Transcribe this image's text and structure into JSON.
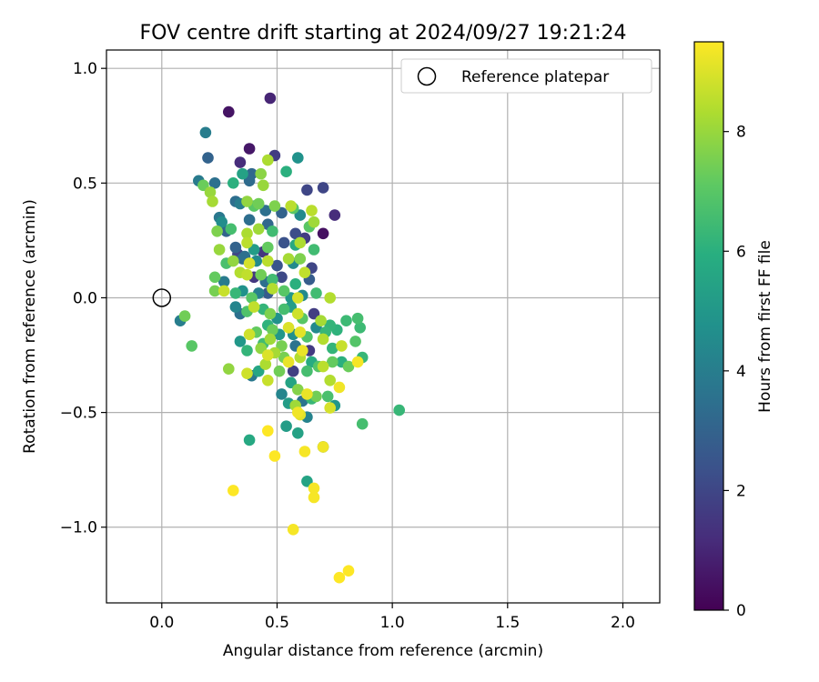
{
  "chart_data": {
    "type": "scatter",
    "title": "FOV centre drift starting at 2024/09/27 19:21:24",
    "xlabel": "Angular distance from reference (arcmin)",
    "ylabel": "Rotation from reference (arcmin)",
    "xlim": [
      -0.24,
      2.16
    ],
    "ylim": [
      -1.33,
      1.08
    ],
    "x_ticks": [
      0.0,
      0.5,
      1.0,
      1.5,
      2.0
    ],
    "x_tick_labels": [
      "0.0",
      "0.5",
      "1.0",
      "1.5",
      "2.0"
    ],
    "y_ticks": [
      -1.0,
      -0.5,
      0.0,
      0.5,
      1.0
    ],
    "y_tick_labels": [
      "−1.0",
      "−0.5",
      "0.0",
      "0.5",
      "1.0"
    ],
    "grid": true,
    "legend": {
      "position": "top-right",
      "entries": [
        {
          "label": "Reference platepar",
          "marker": "open-circle"
        }
      ]
    },
    "reference_point": {
      "x": 0.0,
      "y": 0.0
    },
    "colorbar": {
      "label": "Hours from first FF file",
      "range": [
        0,
        9.5
      ],
      "ticks": [
        0,
        2,
        4,
        6,
        8
      ],
      "tick_labels": [
        "0",
        "2",
        "4",
        "6",
        "8"
      ],
      "colormap": "viridis"
    },
    "points": [
      {
        "x": 0.29,
        "y": 0.81,
        "h": 0.5
      },
      {
        "x": 0.47,
        "y": 0.87,
        "h": 1.0
      },
      {
        "x": 0.38,
        "y": 0.65,
        "h": 0.6
      },
      {
        "x": 0.49,
        "y": 0.62,
        "h": 1.7
      },
      {
        "x": 0.34,
        "y": 0.59,
        "h": 1.2
      },
      {
        "x": 0.19,
        "y": 0.72,
        "h": 4.0
      },
      {
        "x": 0.2,
        "y": 0.61,
        "h": 3.0
      },
      {
        "x": 0.59,
        "y": 0.61,
        "h": 4.8
      },
      {
        "x": 0.35,
        "y": 0.54,
        "h": 5.4
      },
      {
        "x": 0.39,
        "y": 0.54,
        "h": 3.2
      },
      {
        "x": 0.46,
        "y": 0.6,
        "h": 8.3
      },
      {
        "x": 0.43,
        "y": 0.54,
        "h": 7.8
      },
      {
        "x": 0.16,
        "y": 0.51,
        "h": 3.9
      },
      {
        "x": 0.18,
        "y": 0.49,
        "h": 7.3
      },
      {
        "x": 0.21,
        "y": 0.46,
        "h": 8.0
      },
      {
        "x": 0.23,
        "y": 0.5,
        "h": 3.5
      },
      {
        "x": 0.31,
        "y": 0.5,
        "h": 6.0
      },
      {
        "x": 0.38,
        "y": 0.51,
        "h": 3.3
      },
      {
        "x": 0.44,
        "y": 0.49,
        "h": 8.0
      },
      {
        "x": 0.54,
        "y": 0.55,
        "h": 6.0
      },
      {
        "x": 0.63,
        "y": 0.47,
        "h": 2.0
      },
      {
        "x": 0.7,
        "y": 0.48,
        "h": 2.0
      },
      {
        "x": 0.22,
        "y": 0.42,
        "h": 8.2
      },
      {
        "x": 0.32,
        "y": 0.42,
        "h": 3.4
      },
      {
        "x": 0.34,
        "y": 0.41,
        "h": 4.0
      },
      {
        "x": 0.37,
        "y": 0.42,
        "h": 7.9
      },
      {
        "x": 0.4,
        "y": 0.4,
        "h": 7.0
      },
      {
        "x": 0.42,
        "y": 0.41,
        "h": 7.4
      },
      {
        "x": 0.45,
        "y": 0.38,
        "h": 3.5
      },
      {
        "x": 0.49,
        "y": 0.4,
        "h": 7.6
      },
      {
        "x": 0.52,
        "y": 0.37,
        "h": 3.0
      },
      {
        "x": 0.56,
        "y": 0.4,
        "h": 8.5
      },
      {
        "x": 0.57,
        "y": 0.39,
        "h": 7.0
      },
      {
        "x": 0.6,
        "y": 0.36,
        "h": 4.5
      },
      {
        "x": 0.65,
        "y": 0.38,
        "h": 8.5
      },
      {
        "x": 0.66,
        "y": 0.33,
        "h": 8.1
      },
      {
        "x": 0.75,
        "y": 0.36,
        "h": 1.2
      },
      {
        "x": 0.25,
        "y": 0.35,
        "h": 3.8
      },
      {
        "x": 0.26,
        "y": 0.33,
        "h": 4.6
      },
      {
        "x": 0.28,
        "y": 0.29,
        "h": 3.0
      },
      {
        "x": 0.24,
        "y": 0.29,
        "h": 7.6
      },
      {
        "x": 0.3,
        "y": 0.3,
        "h": 6.6
      },
      {
        "x": 0.38,
        "y": 0.34,
        "h": 3.4
      },
      {
        "x": 0.42,
        "y": 0.3,
        "h": 8.1
      },
      {
        "x": 0.46,
        "y": 0.32,
        "h": 3.2
      },
      {
        "x": 0.48,
        "y": 0.29,
        "h": 6.5
      },
      {
        "x": 0.58,
        "y": 0.28,
        "h": 2.2
      },
      {
        "x": 0.62,
        "y": 0.26,
        "h": 1.7
      },
      {
        "x": 0.64,
        "y": 0.31,
        "h": 7.0
      },
      {
        "x": 0.7,
        "y": 0.28,
        "h": 0.4
      },
      {
        "x": 0.37,
        "y": 0.28,
        "h": 8.3
      },
      {
        "x": 0.37,
        "y": 0.24,
        "h": 8.5
      },
      {
        "x": 0.25,
        "y": 0.21,
        "h": 8.0
      },
      {
        "x": 0.32,
        "y": 0.22,
        "h": 3.0
      },
      {
        "x": 0.33,
        "y": 0.19,
        "h": 2.0
      },
      {
        "x": 0.36,
        "y": 0.18,
        "h": 3.5
      },
      {
        "x": 0.4,
        "y": 0.21,
        "h": 5.2
      },
      {
        "x": 0.44,
        "y": 0.2,
        "h": 1.5
      },
      {
        "x": 0.46,
        "y": 0.22,
        "h": 7.2
      },
      {
        "x": 0.53,
        "y": 0.24,
        "h": 2.4
      },
      {
        "x": 0.58,
        "y": 0.23,
        "h": 5.7
      },
      {
        "x": 0.6,
        "y": 0.24,
        "h": 8.3
      },
      {
        "x": 0.66,
        "y": 0.21,
        "h": 6.5
      },
      {
        "x": 0.28,
        "y": 0.15,
        "h": 6.7
      },
      {
        "x": 0.31,
        "y": 0.16,
        "h": 7.9
      },
      {
        "x": 0.35,
        "y": 0.17,
        "h": 3.3
      },
      {
        "x": 0.38,
        "y": 0.15,
        "h": 8.9
      },
      {
        "x": 0.41,
        "y": 0.16,
        "h": 4.5
      },
      {
        "x": 0.46,
        "y": 0.16,
        "h": 8.5
      },
      {
        "x": 0.5,
        "y": 0.14,
        "h": 2.5
      },
      {
        "x": 0.55,
        "y": 0.17,
        "h": 8.2
      },
      {
        "x": 0.57,
        "y": 0.15,
        "h": 4.5
      },
      {
        "x": 0.6,
        "y": 0.17,
        "h": 7.6
      },
      {
        "x": 0.65,
        "y": 0.13,
        "h": 2.0
      },
      {
        "x": 0.23,
        "y": 0.09,
        "h": 7.2
      },
      {
        "x": 0.27,
        "y": 0.07,
        "h": 3.9
      },
      {
        "x": 0.34,
        "y": 0.11,
        "h": 8.4
      },
      {
        "x": 0.37,
        "y": 0.1,
        "h": 8.6
      },
      {
        "x": 0.4,
        "y": 0.09,
        "h": 1.5
      },
      {
        "x": 0.43,
        "y": 0.1,
        "h": 7.4
      },
      {
        "x": 0.45,
        "y": 0.07,
        "h": 3.5
      },
      {
        "x": 0.48,
        "y": 0.08,
        "h": 6.5
      },
      {
        "x": 0.52,
        "y": 0.09,
        "h": 2.1
      },
      {
        "x": 0.58,
        "y": 0.06,
        "h": 6.0
      },
      {
        "x": 0.62,
        "y": 0.11,
        "h": 8.6
      },
      {
        "x": 0.64,
        "y": 0.08,
        "h": 2.8
      },
      {
        "x": 0.23,
        "y": 0.03,
        "h": 7.5
      },
      {
        "x": 0.27,
        "y": 0.03,
        "h": 8.7
      },
      {
        "x": 0.32,
        "y": 0.02,
        "h": 6.3
      },
      {
        "x": 0.35,
        "y": 0.03,
        "h": 4.8
      },
      {
        "x": 0.39,
        "y": 0.0,
        "h": 7.0
      },
      {
        "x": 0.42,
        "y": 0.02,
        "h": 4.1
      },
      {
        "x": 0.46,
        "y": 0.02,
        "h": 2.7
      },
      {
        "x": 0.48,
        "y": 0.04,
        "h": 8.4
      },
      {
        "x": 0.53,
        "y": 0.03,
        "h": 7.0
      },
      {
        "x": 0.56,
        "y": 0.0,
        "h": 5.0
      },
      {
        "x": 0.59,
        "y": 0.0,
        "h": 8.9
      },
      {
        "x": 0.61,
        "y": 0.01,
        "h": 4.5
      },
      {
        "x": 0.67,
        "y": 0.02,
        "h": 6.5
      },
      {
        "x": 0.73,
        "y": 0.0,
        "h": 8.4
      },
      {
        "x": 0.1,
        "y": -0.08,
        "h": 7.4
      },
      {
        "x": 0.08,
        "y": -0.1,
        "h": 4.0
      },
      {
        "x": 0.13,
        "y": -0.21,
        "h": 7.0
      },
      {
        "x": 0.32,
        "y": -0.04,
        "h": 4.3
      },
      {
        "x": 0.34,
        "y": -0.07,
        "h": 3.5
      },
      {
        "x": 0.37,
        "y": -0.06,
        "h": 6.8
      },
      {
        "x": 0.4,
        "y": -0.04,
        "h": 8.6
      },
      {
        "x": 0.44,
        "y": -0.05,
        "h": 6.2
      },
      {
        "x": 0.47,
        "y": -0.07,
        "h": 7.6
      },
      {
        "x": 0.5,
        "y": -0.09,
        "h": 4.8
      },
      {
        "x": 0.53,
        "y": -0.05,
        "h": 6.6
      },
      {
        "x": 0.56,
        "y": -0.04,
        "h": 5.2
      },
      {
        "x": 0.59,
        "y": -0.07,
        "h": 8.8
      },
      {
        "x": 0.61,
        "y": -0.09,
        "h": 7.0
      },
      {
        "x": 0.66,
        "y": -0.07,
        "h": 1.7
      },
      {
        "x": 0.69,
        "y": -0.1,
        "h": 8.2
      },
      {
        "x": 0.73,
        "y": -0.12,
        "h": 6.2
      },
      {
        "x": 0.8,
        "y": -0.1,
        "h": 6.4
      },
      {
        "x": 0.85,
        "y": -0.09,
        "h": 6.6
      },
      {
        "x": 0.86,
        "y": -0.13,
        "h": 6.4
      },
      {
        "x": 0.41,
        "y": -0.15,
        "h": 7.2
      },
      {
        "x": 0.46,
        "y": -0.12,
        "h": 6.1
      },
      {
        "x": 0.48,
        "y": -0.14,
        "h": 7.3
      },
      {
        "x": 0.51,
        "y": -0.16,
        "h": 5.0
      },
      {
        "x": 0.55,
        "y": -0.13,
        "h": 9.0
      },
      {
        "x": 0.57,
        "y": -0.16,
        "h": 4.7
      },
      {
        "x": 0.6,
        "y": -0.15,
        "h": 9.1
      },
      {
        "x": 0.63,
        "y": -0.17,
        "h": 6.8
      },
      {
        "x": 0.67,
        "y": -0.13,
        "h": 4.5
      },
      {
        "x": 0.71,
        "y": -0.15,
        "h": 6.3
      },
      {
        "x": 0.76,
        "y": -0.14,
        "h": 6.1
      },
      {
        "x": 0.34,
        "y": -0.19,
        "h": 5.0
      },
      {
        "x": 0.38,
        "y": -0.16,
        "h": 8.8
      },
      {
        "x": 0.44,
        "y": -0.2,
        "h": 6.5
      },
      {
        "x": 0.47,
        "y": -0.18,
        "h": 8.1
      },
      {
        "x": 0.52,
        "y": -0.21,
        "h": 7.5
      },
      {
        "x": 0.58,
        "y": -0.21,
        "h": 3.6
      },
      {
        "x": 0.61,
        "y": -0.23,
        "h": 9.2
      },
      {
        "x": 0.64,
        "y": -0.23,
        "h": 1.6
      },
      {
        "x": 0.7,
        "y": -0.18,
        "h": 8.4
      },
      {
        "x": 0.74,
        "y": -0.22,
        "h": 6.2
      },
      {
        "x": 0.78,
        "y": -0.21,
        "h": 8.7
      },
      {
        "x": 0.84,
        "y": -0.19,
        "h": 6.9
      },
      {
        "x": 0.37,
        "y": -0.23,
        "h": 6.2
      },
      {
        "x": 0.43,
        "y": -0.22,
        "h": 7.9
      },
      {
        "x": 0.46,
        "y": -0.25,
        "h": 9.0
      },
      {
        "x": 0.49,
        "y": -0.24,
        "h": 8.2
      },
      {
        "x": 0.53,
        "y": -0.26,
        "h": 7.5
      },
      {
        "x": 0.55,
        "y": -0.28,
        "h": 9.2
      },
      {
        "x": 0.6,
        "y": -0.26,
        "h": 8.4
      },
      {
        "x": 0.65,
        "y": -0.28,
        "h": 5.8
      },
      {
        "x": 0.7,
        "y": -0.3,
        "h": 8.5
      },
      {
        "x": 0.74,
        "y": -0.28,
        "h": 7.2
      },
      {
        "x": 0.78,
        "y": -0.28,
        "h": 6.0
      },
      {
        "x": 0.81,
        "y": -0.3,
        "h": 7.3
      },
      {
        "x": 0.85,
        "y": -0.28,
        "h": 9.4
      },
      {
        "x": 0.87,
        "y": -0.26,
        "h": 6.3
      },
      {
        "x": 0.29,
        "y": -0.31,
        "h": 7.9
      },
      {
        "x": 0.37,
        "y": -0.33,
        "h": 8.8
      },
      {
        "x": 0.39,
        "y": -0.34,
        "h": 3.8
      },
      {
        "x": 0.42,
        "y": -0.32,
        "h": 5.6
      },
      {
        "x": 0.45,
        "y": -0.29,
        "h": 8.3
      },
      {
        "x": 0.51,
        "y": -0.32,
        "h": 7.4
      },
      {
        "x": 0.57,
        "y": -0.32,
        "h": 1.8
      },
      {
        "x": 0.63,
        "y": -0.32,
        "h": 6.6
      },
      {
        "x": 0.68,
        "y": -0.3,
        "h": 6.9
      },
      {
        "x": 0.46,
        "y": -0.36,
        "h": 8.7
      },
      {
        "x": 0.56,
        "y": -0.37,
        "h": 5.5
      },
      {
        "x": 0.73,
        "y": -0.36,
        "h": 8.4
      },
      {
        "x": 0.77,
        "y": -0.39,
        "h": 9.3
      },
      {
        "x": 0.52,
        "y": -0.42,
        "h": 4.3
      },
      {
        "x": 0.59,
        "y": -0.4,
        "h": 7.7
      },
      {
        "x": 0.63,
        "y": -0.42,
        "h": 9.2
      },
      {
        "x": 0.67,
        "y": -0.43,
        "h": 7.4
      },
      {
        "x": 0.72,
        "y": -0.43,
        "h": 6.7
      },
      {
        "x": 0.55,
        "y": -0.46,
        "h": 5.2
      },
      {
        "x": 0.58,
        "y": -0.47,
        "h": 8.1
      },
      {
        "x": 0.61,
        "y": -0.45,
        "h": 3.6
      },
      {
        "x": 0.65,
        "y": -0.44,
        "h": 6.3
      },
      {
        "x": 0.73,
        "y": -0.48,
        "h": 8.9
      },
      {
        "x": 0.75,
        "y": -0.47,
        "h": 5.0
      },
      {
        "x": 0.59,
        "y": -0.5,
        "h": 9.3
      },
      {
        "x": 0.6,
        "y": -0.51,
        "h": 9.1
      },
      {
        "x": 0.63,
        "y": -0.52,
        "h": 4.2
      },
      {
        "x": 0.54,
        "y": -0.56,
        "h": 5.2
      },
      {
        "x": 0.46,
        "y": -0.58,
        "h": 9.5
      },
      {
        "x": 0.59,
        "y": -0.59,
        "h": 5.4
      },
      {
        "x": 0.87,
        "y": -0.55,
        "h": 6.6
      },
      {
        "x": 1.03,
        "y": -0.49,
        "h": 6.3
      },
      {
        "x": 0.38,
        "y": -0.62,
        "h": 5.7
      },
      {
        "x": 0.7,
        "y": -0.65,
        "h": 9.3
      },
      {
        "x": 0.7,
        "y": -0.65,
        "h": 4.1
      },
      {
        "x": 0.49,
        "y": -0.69,
        "h": 9.5
      },
      {
        "x": 0.62,
        "y": -0.67,
        "h": 9.4
      },
      {
        "x": 0.63,
        "y": -0.8,
        "h": 5.5
      },
      {
        "x": 0.66,
        "y": -0.83,
        "h": 9.4
      },
      {
        "x": 0.66,
        "y": -0.87,
        "h": 9.4
      },
      {
        "x": 0.31,
        "y": -0.84,
        "h": 9.5
      },
      {
        "x": 0.57,
        "y": -1.01,
        "h": 9.4
      },
      {
        "x": 0.81,
        "y": -1.19,
        "h": 9.5
      },
      {
        "x": 0.77,
        "y": -1.22,
        "h": 9.5
      }
    ]
  }
}
